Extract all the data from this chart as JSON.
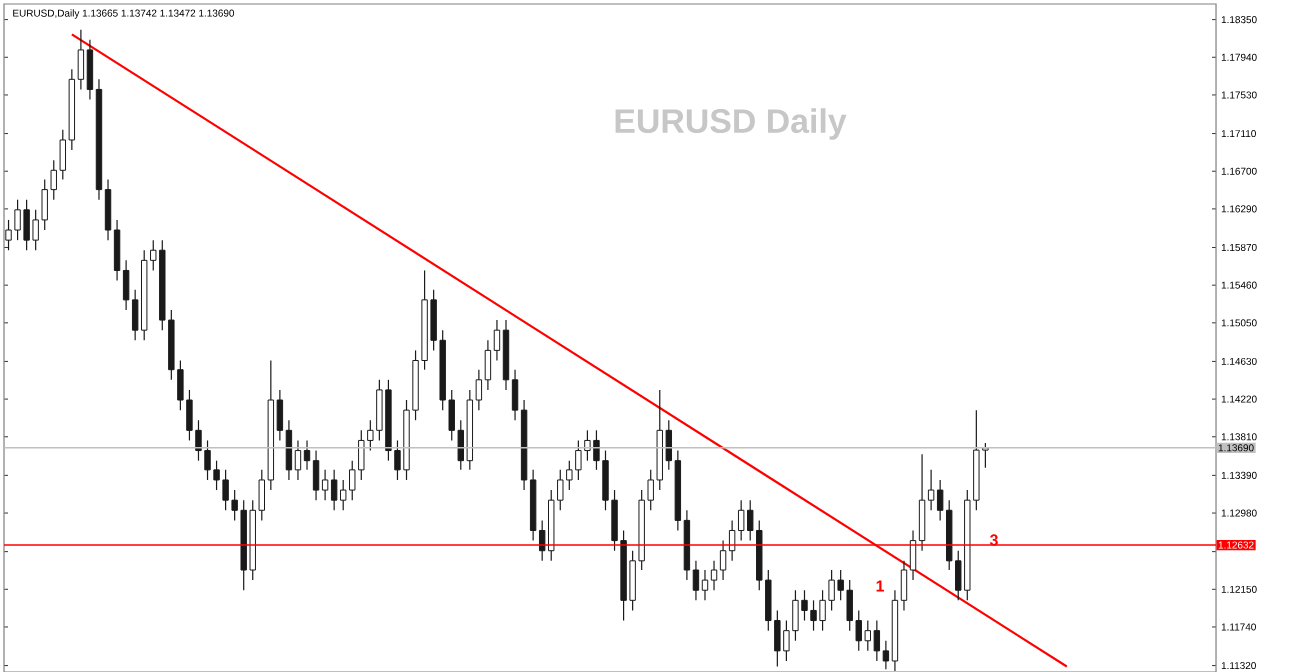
{
  "chart_data": {
    "type": "candlestick",
    "title": "EURUSD  Daily",
    "subtitle": "EURUSD,Daily 1.13665 1.13742 1.13472 1.13690",
    "categories": [
      null,
      null,
      null,
      null,
      null,
      null,
      null,
      null,
      null,
      null,
      null,
      null,
      null,
      null,
      null,
      null,
      null,
      null,
      null,
      null,
      null,
      null,
      null,
      null,
      null,
      null,
      null,
      null,
      null,
      null,
      null,
      null,
      null,
      null,
      null,
      null,
      null,
      null,
      null,
      null,
      null,
      null,
      null,
      null,
      null,
      null,
      null,
      null,
      null,
      null,
      null,
      null,
      null,
      null,
      null,
      null,
      null,
      null,
      null,
      null,
      null,
      null,
      null,
      null,
      null,
      null,
      null,
      null,
      null,
      null,
      null,
      null,
      null,
      null,
      null,
      null,
      null,
      null,
      null,
      null,
      null,
      null,
      null,
      null,
      null,
      null,
      null,
      null,
      null,
      null,
      null,
      null,
      null,
      null,
      null,
      null,
      null,
      null,
      null,
      null,
      null,
      null,
      null,
      null,
      null,
      null,
      null,
      null,
      null,
      null,
      null,
      null,
      null,
      null,
      null,
      null,
      null,
      null,
      null,
      null,
      null,
      null,
      null,
      null,
      null,
      null,
      null,
      null,
      null,
      null,
      null,
      null,
      null,
      null
    ],
    "series": [
      {
        "color": "#1a1a1a",
        "ohlc": [
          [
            1.1595,
            1.1617,
            1.1584,
            1.1606
          ],
          [
            1.1606,
            1.1639,
            1.1595,
            1.1628
          ],
          [
            1.1628,
            1.1639,
            1.1584,
            1.1595
          ],
          [
            1.1595,
            1.1628,
            1.1584,
            1.1617
          ],
          [
            1.1617,
            1.1661,
            1.1606,
            1.165
          ],
          [
            1.165,
            1.1682,
            1.1639,
            1.1671
          ],
          [
            1.1671,
            1.1715,
            1.1661,
            1.1704
          ],
          [
            1.1704,
            1.1781,
            1.1693,
            1.177
          ],
          [
            1.177,
            1.1824,
            1.1759,
            1.1802
          ],
          [
            1.1802,
            1.1813,
            1.1748,
            1.1759
          ],
          [
            1.1759,
            1.177,
            1.1639,
            1.165
          ],
          [
            1.165,
            1.1661,
            1.1595,
            1.1606
          ],
          [
            1.1606,
            1.1617,
            1.1551,
            1.1562
          ],
          [
            1.1562,
            1.1573,
            1.1519,
            1.153
          ],
          [
            1.153,
            1.1541,
            1.1486,
            1.1497
          ],
          [
            1.1497,
            1.1584,
            1.1486,
            1.1573
          ],
          [
            1.1573,
            1.1595,
            1.1562,
            1.1584
          ],
          [
            1.1584,
            1.1595,
            1.1497,
            1.1508
          ],
          [
            1.1508,
            1.1519,
            1.1443,
            1.1454
          ],
          [
            1.1454,
            1.1464,
            1.141,
            1.1421
          ],
          [
            1.1421,
            1.1432,
            1.1377,
            1.1388
          ],
          [
            1.1388,
            1.1399,
            1.1355,
            1.1366
          ],
          [
            1.1366,
            1.1377,
            1.1334,
            1.1345
          ],
          [
            1.1345,
            1.1355,
            1.1323,
            1.1334
          ],
          [
            1.1334,
            1.1345,
            1.1301,
            1.1312
          ],
          [
            1.1312,
            1.1323,
            1.129,
            1.1301
          ],
          [
            1.1301,
            1.1312,
            1.1214,
            1.1236
          ],
          [
            1.1236,
            1.1312,
            1.1225,
            1.1301
          ],
          [
            1.1301,
            1.1345,
            1.129,
            1.1334
          ],
          [
            1.1334,
            1.1464,
            1.1323,
            1.1421
          ],
          [
            1.1421,
            1.1432,
            1.1377,
            1.1388
          ],
          [
            1.1388,
            1.1399,
            1.1334,
            1.1345
          ],
          [
            1.1345,
            1.1377,
            1.1334,
            1.1366
          ],
          [
            1.1366,
            1.1377,
            1.1345,
            1.1355
          ],
          [
            1.1355,
            1.1366,
            1.1312,
            1.1323
          ],
          [
            1.1323,
            1.1345,
            1.1312,
            1.1334
          ],
          [
            1.1334,
            1.1345,
            1.1301,
            1.1312
          ],
          [
            1.1312,
            1.1334,
            1.1301,
            1.1323
          ],
          [
            1.1323,
            1.1355,
            1.1312,
            1.1345
          ],
          [
            1.1345,
            1.1388,
            1.1334,
            1.1377
          ],
          [
            1.1377,
            1.1399,
            1.1366,
            1.1388
          ],
          [
            1.1388,
            1.1443,
            1.1377,
            1.1432
          ],
          [
            1.1432,
            1.1443,
            1.1355,
            1.1366
          ],
          [
            1.1366,
            1.1377,
            1.1334,
            1.1345
          ],
          [
            1.1345,
            1.1421,
            1.1334,
            1.141
          ],
          [
            1.141,
            1.1475,
            1.1399,
            1.1464
          ],
          [
            1.1464,
            1.1562,
            1.1454,
            1.153
          ],
          [
            1.153,
            1.1541,
            1.1475,
            1.1486
          ],
          [
            1.1486,
            1.1497,
            1.141,
            1.1421
          ],
          [
            1.1421,
            1.1432,
            1.1377,
            1.1388
          ],
          [
            1.1388,
            1.1399,
            1.1345,
            1.1355
          ],
          [
            1.1355,
            1.1432,
            1.1345,
            1.1421
          ],
          [
            1.1421,
            1.1454,
            1.141,
            1.1443
          ],
          [
            1.1443,
            1.1486,
            1.1432,
            1.1475
          ],
          [
            1.1475,
            1.1508,
            1.1464,
            1.1497
          ],
          [
            1.1497,
            1.1508,
            1.1432,
            1.1443
          ],
          [
            1.1443,
            1.1454,
            1.1399,
            1.141
          ],
          [
            1.141,
            1.1421,
            1.1323,
            1.1334
          ],
          [
            1.1334,
            1.1345,
            1.1268,
            1.1279
          ],
          [
            1.1279,
            1.129,
            1.1246,
            1.1257
          ],
          [
            1.1257,
            1.1323,
            1.1246,
            1.1312
          ],
          [
            1.1312,
            1.1345,
            1.1301,
            1.1334
          ],
          [
            1.1334,
            1.1355,
            1.1323,
            1.1345
          ],
          [
            1.1345,
            1.1377,
            1.1334,
            1.1366
          ],
          [
            1.1366,
            1.1388,
            1.1355,
            1.1377
          ],
          [
            1.1377,
            1.1388,
            1.1345,
            1.1355
          ],
          [
            1.1355,
            1.1366,
            1.1301,
            1.1312
          ],
          [
            1.1312,
            1.1323,
            1.1257,
            1.1268
          ],
          [
            1.1268,
            1.1279,
            1.1181,
            1.1203
          ],
          [
            1.1203,
            1.1257,
            1.1192,
            1.1246
          ],
          [
            1.1246,
            1.1323,
            1.1236,
            1.1312
          ],
          [
            1.1312,
            1.1345,
            1.1301,
            1.1334
          ],
          [
            1.1334,
            1.1432,
            1.1323,
            1.1388
          ],
          [
            1.1388,
            1.1399,
            1.1345,
            1.1355
          ],
          [
            1.1355,
            1.1366,
            1.1279,
            1.129
          ],
          [
            1.129,
            1.1301,
            1.1225,
            1.1236
          ],
          [
            1.1236,
            1.1246,
            1.1203,
            1.1214
          ],
          [
            1.1214,
            1.1236,
            1.1203,
            1.1225
          ],
          [
            1.1225,
            1.1246,
            1.1214,
            1.1236
          ],
          [
            1.1236,
            1.1268,
            1.1225,
            1.1257
          ],
          [
            1.1257,
            1.129,
            1.1246,
            1.1279
          ],
          [
            1.1279,
            1.1312,
            1.1268,
            1.1301
          ],
          [
            1.1301,
            1.1312,
            1.1268,
            1.1279
          ],
          [
            1.1279,
            1.129,
            1.1214,
            1.1225
          ],
          [
            1.1225,
            1.1236,
            1.117,
            1.1181
          ],
          [
            1.1181,
            1.1192,
            1.1131,
            1.1148
          ],
          [
            1.1148,
            1.1181,
            1.1137,
            1.117
          ],
          [
            1.117,
            1.1214,
            1.1159,
            1.1203
          ],
          [
            1.1203,
            1.1214,
            1.1181,
            1.1192
          ],
          [
            1.1192,
            1.1203,
            1.117,
            1.1181
          ],
          [
            1.1181,
            1.1214,
            1.117,
            1.1203
          ],
          [
            1.1203,
            1.1236,
            1.1192,
            1.1225
          ],
          [
            1.1225,
            1.1236,
            1.1203,
            1.1214
          ],
          [
            1.1214,
            1.1225,
            1.117,
            1.1181
          ],
          [
            1.1181,
            1.1192,
            1.1148,
            1.1159
          ],
          [
            1.1159,
            1.1181,
            1.1148,
            1.117
          ],
          [
            1.117,
            1.1181,
            1.1137,
            1.1148
          ],
          [
            1.1148,
            1.1159,
            1.1128,
            1.1137
          ],
          [
            1.1137,
            1.1214,
            1.1126,
            1.1203
          ],
          [
            1.1203,
            1.1246,
            1.1192,
            1.1236
          ],
          [
            1.1236,
            1.1279,
            1.1225,
            1.1268
          ],
          [
            1.1268,
            1.1362,
            1.1257,
            1.1312
          ],
          [
            1.1312,
            1.1345,
            1.1301,
            1.1323
          ],
          [
            1.1323,
            1.1334,
            1.129,
            1.1301
          ],
          [
            1.1301,
            1.1312,
            1.1236,
            1.1246
          ],
          [
            1.1246,
            1.1257,
            1.1203,
            1.1214
          ],
          [
            1.1214,
            1.1323,
            1.1203,
            1.1312
          ],
          [
            1.1312,
            1.141,
            1.1301,
            1.13665
          ],
          [
            1.13665,
            1.13742,
            1.13472,
            1.1369
          ],
          null,
          null,
          null,
          null,
          null,
          null,
          null,
          null,
          null,
          null,
          null,
          null,
          null,
          null,
          null,
          null,
          null,
          null,
          null,
          null,
          null,
          null,
          null,
          null,
          null
        ]
      },
      {
        "type": "line",
        "color": "#ff0000",
        "values": [
          null,
          null,
          null,
          null,
          null,
          null,
          null,
          1.1819,
          null,
          null,
          null,
          null,
          null,
          null,
          null,
          null,
          null,
          null,
          null,
          null,
          null,
          null,
          null,
          null,
          null,
          null,
          null,
          null,
          null,
          null,
          null,
          null,
          null,
          null,
          null,
          null,
          null,
          null,
          null,
          null,
          null,
          null,
          null,
          null,
          null,
          null,
          null,
          null,
          null,
          null,
          null,
          null,
          null,
          null,
          null,
          null,
          null,
          null,
          null,
          null,
          null,
          null,
          null,
          null,
          null,
          null,
          null,
          null,
          null,
          null,
          null,
          null,
          null,
          null,
          null,
          null,
          null,
          null,
          null,
          null,
          null,
          null,
          null,
          null,
          null,
          null,
          null,
          null,
          null,
          null,
          null,
          null,
          null,
          null,
          null,
          null,
          null,
          null,
          null,
          null,
          null,
          null,
          null,
          null,
          null,
          null,
          null,
          null,
          null,
          null,
          null,
          null,
          null,
          null,
          null,
          null,
          null,
          1.1131,
          null,
          null,
          null,
          null,
          null,
          null,
          null,
          null,
          null,
          null,
          null,
          null,
          null,
          null,
          null,
          null
        ]
      }
    ],
    "ylim": [
      1.1125,
      1.1852
    ],
    "yticks": [
      {
        "value": 1.1835,
        "label": "1.18350"
      },
      {
        "value": 1.1794,
        "label": "1.17940"
      },
      {
        "value": 1.1753,
        "label": "1.17530"
      },
      {
        "value": 1.1711,
        "label": "1.17110"
      },
      {
        "value": 1.167,
        "label": "1.16700"
      },
      {
        "value": 1.1629,
        "label": "1.16290"
      },
      {
        "value": 1.1587,
        "label": "1.15870"
      },
      {
        "value": 1.1546,
        "label": "1.15460"
      },
      {
        "value": 1.1505,
        "label": "1.15050"
      },
      {
        "value": 1.1463,
        "label": "1.14630"
      },
      {
        "value": 1.1422,
        "label": "1.14220"
      },
      {
        "value": 1.1381,
        "label": "1.13810"
      },
      {
        "value": 1.1339,
        "label": "1.13390"
      },
      {
        "value": 1.1298,
        "label": "1.12980"
      },
      {
        "value": 1.1256,
        "label": null
      },
      {
        "value": 1.1215,
        "label": "1.12150"
      },
      {
        "value": 1.1174,
        "label": "1.11740"
      },
      {
        "value": 1.1132,
        "label": "1.11320"
      }
    ],
    "ref_lines": [
      {
        "axis": "y",
        "value": 1.12632,
        "label": "1.12632",
        "color": "#ff0000"
      },
      {
        "axis": "y",
        "value": 1.1369,
        "label": "1.13690",
        "color": "#c0c0c0"
      }
    ],
    "annotations": [
      "1",
      "3"
    ],
    "grid": false
  }
}
